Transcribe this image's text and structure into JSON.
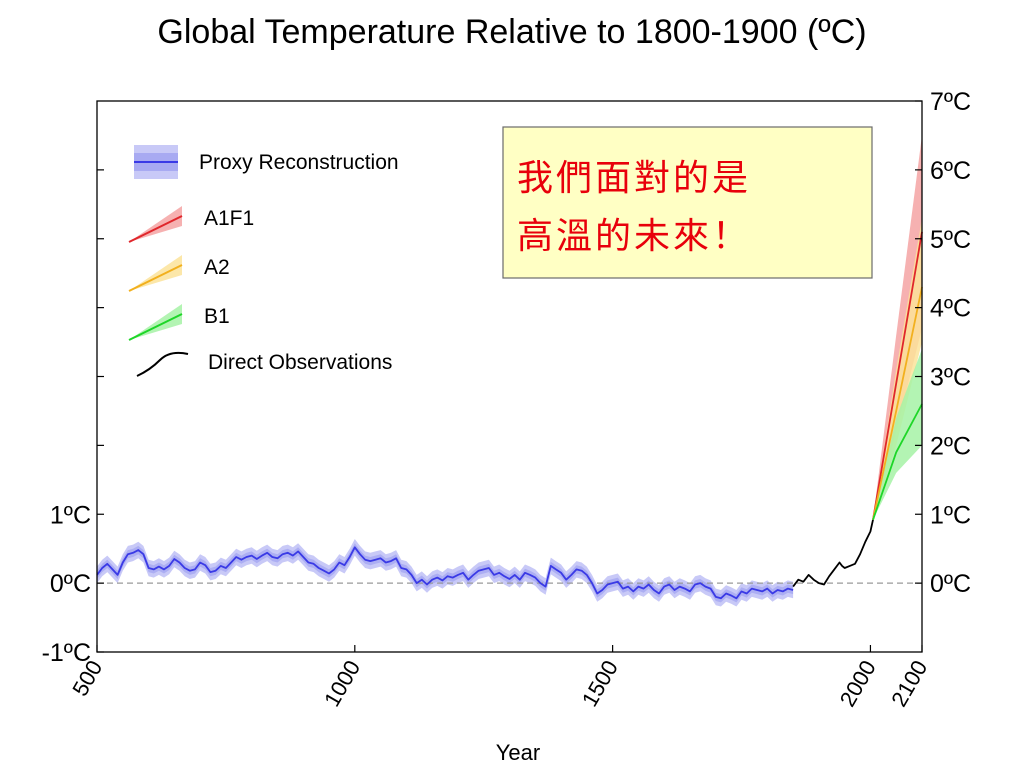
{
  "chart_data": {
    "type": "line",
    "title": "Global Temperature Relative to 1800-1900 (ºC)",
    "xlabel": "Year",
    "ylabel": "",
    "xlim": [
      500,
      2100
    ],
    "ylim": [
      -1,
      7
    ],
    "x_ticks": [
      {
        "value": 500,
        "label": "500"
      },
      {
        "value": 1000,
        "label": "1000"
      },
      {
        "value": 1500,
        "label": "1500"
      },
      {
        "value": 2000,
        "label": "2000"
      },
      {
        "value": 2100,
        "label": "2100"
      }
    ],
    "y_ticks_left": [
      {
        "value": 1,
        "label": "1ºC"
      },
      {
        "value": 0,
        "label": "0ºC"
      },
      {
        "value": -1,
        "label": "-1ºC"
      }
    ],
    "y_ticks_right": [
      {
        "value": 7,
        "label": "7ºC"
      },
      {
        "value": 6,
        "label": "6ºC"
      },
      {
        "value": 5,
        "label": "5ºC"
      },
      {
        "value": 4,
        "label": "4ºC"
      },
      {
        "value": 3,
        "label": "3ºC"
      },
      {
        "value": 2,
        "label": "2ºC"
      },
      {
        "value": 1,
        "label": "1ºC"
      },
      {
        "value": 0,
        "label": "0ºC"
      }
    ],
    "left_minor_tick_values": [
      2,
      3,
      4,
      5,
      6
    ],
    "baseline": 0,
    "grid": false,
    "legend_position": "top-left",
    "legend": [
      {
        "label": "Proxy Reconstruction",
        "color": "#3a3ae6",
        "band_color": "#9a9cf0"
      },
      {
        "label": "A1F1",
        "color": "#e0262b",
        "band_color": "#f5a3a3"
      },
      {
        "label": "A2",
        "color": "#f2b01e",
        "band_color": "#fbe39a"
      },
      {
        "label": "B1",
        "color": "#1ed628",
        "band_color": "#a6f2a6"
      },
      {
        "label": "Direct Observations",
        "color": "#000000"
      }
    ],
    "series": [
      {
        "name": "Proxy Reconstruction",
        "color": "#3a3ae6",
        "band_color": "#9a9cf0",
        "uncertainty": 0.12,
        "x": [
          500,
          510,
          520,
          530,
          540,
          550,
          560,
          570,
          580,
          590,
          600,
          610,
          620,
          630,
          640,
          650,
          660,
          670,
          680,
          690,
          700,
          710,
          720,
          730,
          740,
          750,
          760,
          770,
          780,
          790,
          800,
          810,
          820,
          830,
          840,
          850,
          860,
          870,
          880,
          890,
          900,
          910,
          920,
          930,
          940,
          950,
          960,
          970,
          980,
          990,
          1000,
          1010,
          1020,
          1030,
          1040,
          1050,
          1060,
          1070,
          1080,
          1090,
          1100,
          1110,
          1120,
          1130,
          1140,
          1150,
          1160,
          1170,
          1180,
          1190,
          1200,
          1210,
          1220,
          1230,
          1240,
          1250,
          1260,
          1270,
          1280,
          1290,
          1300,
          1310,
          1320,
          1330,
          1340,
          1350,
          1360,
          1370,
          1380,
          1390,
          1400,
          1410,
          1420,
          1430,
          1440,
          1450,
          1460,
          1470,
          1480,
          1490,
          1500,
          1510,
          1520,
          1530,
          1540,
          1550,
          1560,
          1570,
          1580,
          1590,
          1600,
          1610,
          1620,
          1630,
          1640,
          1650,
          1660,
          1670,
          1680,
          1690,
          1700,
          1710,
          1720,
          1730,
          1740,
          1750,
          1760,
          1770,
          1780,
          1790,
          1800,
          1810,
          1820,
          1830,
          1840,
          1850
        ],
        "y": [
          0.12,
          0.22,
          0.28,
          0.2,
          0.12,
          0.3,
          0.42,
          0.44,
          0.48,
          0.42,
          0.22,
          0.2,
          0.24,
          0.2,
          0.25,
          0.35,
          0.3,
          0.22,
          0.18,
          0.2,
          0.3,
          0.26,
          0.16,
          0.18,
          0.25,
          0.22,
          0.3,
          0.38,
          0.34,
          0.38,
          0.4,
          0.35,
          0.4,
          0.44,
          0.38,
          0.36,
          0.42,
          0.44,
          0.4,
          0.46,
          0.38,
          0.3,
          0.28,
          0.22,
          0.18,
          0.14,
          0.2,
          0.3,
          0.26,
          0.38,
          0.52,
          0.42,
          0.34,
          0.32,
          0.34,
          0.36,
          0.3,
          0.32,
          0.36,
          0.22,
          0.2,
          0.12,
          0.0,
          0.05,
          -0.02,
          0.05,
          0.08,
          0.04,
          0.1,
          0.08,
          0.12,
          0.15,
          0.05,
          0.12,
          0.18,
          0.2,
          0.22,
          0.12,
          0.15,
          0.1,
          0.06,
          0.12,
          0.05,
          0.15,
          0.12,
          0.08,
          0.0,
          -0.05,
          0.25,
          0.2,
          0.15,
          0.05,
          0.12,
          0.2,
          0.18,
          0.12,
          0.0,
          -0.15,
          -0.1,
          -0.02,
          0.0,
          0.02,
          -0.08,
          -0.05,
          -0.12,
          -0.05,
          -0.08,
          -0.02,
          -0.1,
          -0.15,
          -0.05,
          -0.02,
          -0.1,
          -0.05,
          -0.08,
          -0.12,
          -0.02,
          0.0,
          -0.05,
          -0.08,
          -0.2,
          -0.22,
          -0.15,
          -0.18,
          -0.22,
          -0.12,
          -0.15,
          -0.08,
          -0.1,
          -0.12,
          -0.08,
          -0.15,
          -0.1,
          -0.12,
          -0.08,
          -0.1
        ]
      },
      {
        "name": "Direct Observations",
        "color": "#000000",
        "x": [
          1850,
          1860,
          1870,
          1880,
          1890,
          1900,
          1910,
          1920,
          1930,
          1940,
          1945,
          1950,
          1960,
          1970,
          1980,
          1990,
          2000,
          2005
        ],
        "y": [
          -0.05,
          0.05,
          0.02,
          0.12,
          0.05,
          0.0,
          -0.02,
          0.1,
          0.2,
          0.3,
          0.25,
          0.22,
          0.25,
          0.28,
          0.42,
          0.6,
          0.75,
          0.92
        ]
      },
      {
        "name": "A1F1",
        "color": "#e0262b",
        "band_color": "#f5a3a3",
        "x": [
          2005,
          2050,
          2100
        ],
        "y": [
          0.92,
          2.9,
          5.1
        ],
        "upper": [
          0.92,
          3.6,
          6.5
        ],
        "lower": [
          0.92,
          2.2,
          3.7
        ]
      },
      {
        "name": "A2",
        "color": "#f2b01e",
        "band_color": "#fbe39a",
        "x": [
          2005,
          2050,
          2100
        ],
        "y": [
          0.92,
          2.5,
          4.3
        ],
        "upper": [
          0.92,
          3.1,
          5.3
        ],
        "lower": [
          0.92,
          2.0,
          3.5
        ]
      },
      {
        "name": "B1",
        "color": "#1ed628",
        "band_color": "#a6f2a6",
        "x": [
          2005,
          2050,
          2100
        ],
        "y": [
          0.92,
          1.9,
          2.6
        ],
        "upper": [
          0.92,
          2.4,
          3.4
        ],
        "lower": [
          0.92,
          1.6,
          2.0
        ]
      }
    ],
    "annotations": [
      {
        "lines": [
          "我們面對的是",
          "高溫的未來！"
        ],
        "text_color": "#e8000b",
        "background": "#ffffc4"
      }
    ]
  }
}
